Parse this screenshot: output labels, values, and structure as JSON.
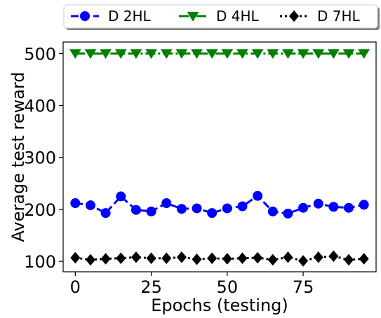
{
  "chart_data": {
    "type": "line",
    "xlabel": "Epochs (testing)",
    "ylabel": "Average test reward",
    "xlim": [
      -4,
      99
    ],
    "ylim": [
      80,
      522
    ],
    "x_ticks": [
      0,
      25,
      50,
      75
    ],
    "y_ticks": [
      100,
      200,
      300,
      400,
      500
    ],
    "x": [
      0,
      5,
      10,
      15,
      20,
      25,
      30,
      35,
      40,
      45,
      50,
      55,
      60,
      65,
      70,
      75,
      80,
      85,
      90,
      95
    ],
    "legend_position": "top, above plot",
    "series": [
      {
        "name": "D 2HL",
        "color": "#0000ff",
        "marker": "circle",
        "linestyle": "dashed",
        "values": [
          212,
          208,
          193,
          225,
          199,
          196,
          212,
          201,
          202,
          193,
          202,
          206,
          226,
          196,
          192,
          203,
          211,
          205,
          203,
          209
        ]
      },
      {
        "name": "D 4HL",
        "color": "#008000",
        "marker": "triangle-down",
        "linestyle": "dashdot",
        "values": [
          500,
          500,
          500,
          500,
          500,
          500,
          500,
          500,
          500,
          500,
          500,
          500,
          500,
          500,
          500,
          500,
          500,
          500,
          500,
          500
        ]
      },
      {
        "name": "D 7HL",
        "color": "#000000",
        "marker": "diamond",
        "linestyle": "dotted",
        "values": [
          107,
          103,
          105,
          106,
          108,
          106,
          106,
          108,
          104,
          106,
          105,
          106,
          107,
          103,
          108,
          101,
          108,
          110,
          103,
          105
        ]
      }
    ]
  }
}
